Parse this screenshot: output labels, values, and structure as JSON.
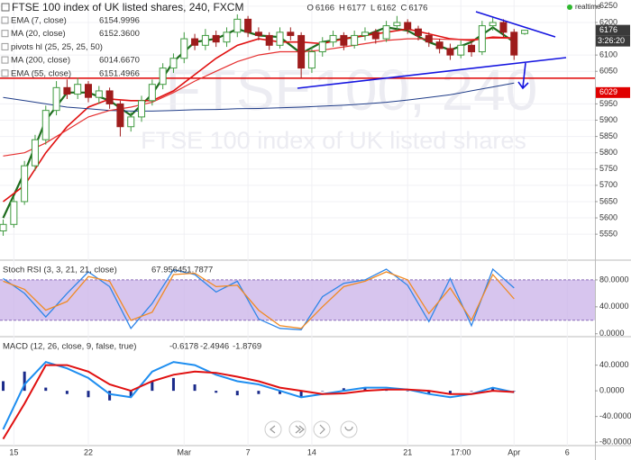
{
  "header": {
    "realtime": "realtime"
  },
  "chart_data": [
    {
      "type": "candlestick",
      "title": "FTSE 100 index of UK listed shares, 240, FXCM",
      "ohlc_labels": [
        {
          "label": "O",
          "value": 6166
        },
        {
          "label": "H",
          "value": 6177
        },
        {
          "label": "L",
          "value": 6162
        },
        {
          "label": "C",
          "value": 6176
        }
      ],
      "watermark": [
        "FTSE100, 240",
        "FTSE 100 index of UK listed shares"
      ],
      "up_color": "#3f9a3f",
      "down_color": "#9e1c1c",
      "open": [
        5560,
        5580,
        5650,
        5760,
        5840,
        5930,
        6000,
        5980,
        6010,
        5970,
        5990,
        5950,
        5880,
        5910,
        5960,
        6010,
        6060,
        6090,
        6150,
        6130,
        6160,
        6140,
        6170,
        6210,
        6170,
        6160,
        6130,
        6170,
        6160,
        6060,
        6110,
        6140,
        6160,
        6130,
        6160,
        6170,
        6150,
        6190,
        6200,
        6180,
        6160,
        6140,
        6120,
        6100,
        6130,
        6110,
        6190,
        6200,
        6170,
        6166
      ],
      "high": [
        5595,
        5665,
        5775,
        5855,
        5945,
        6020,
        6025,
        6030,
        6020,
        6005,
        6000,
        5960,
        5925,
        5975,
        6025,
        6075,
        6105,
        6170,
        6165,
        6180,
        6175,
        6185,
        6225,
        6220,
        6185,
        6170,
        6185,
        6185,
        6170,
        6125,
        6155,
        6175,
        6170,
        6175,
        6185,
        6180,
        6205,
        6220,
        6210,
        6190,
        6170,
        6150,
        6135,
        6145,
        6140,
        6205,
        6215,
        6210,
        6180,
        6177
      ],
      "low": [
        5545,
        5570,
        5640,
        5745,
        5825,
        5915,
        5965,
        5965,
        5955,
        5950,
        5935,
        5850,
        5865,
        5895,
        5945,
        5995,
        6045,
        6075,
        6115,
        6115,
        6125,
        6125,
        6155,
        6155,
        6145,
        6115,
        6120,
        6145,
        6030,
        6045,
        6095,
        6125,
        6115,
        6120,
        6145,
        6135,
        6140,
        6175,
        6165,
        6145,
        6125,
        6105,
        6085,
        6090,
        6095,
        6100,
        6175,
        6155,
        6085,
        6162
      ],
      "close": [
        5580,
        5650,
        5760,
        5840,
        5930,
        6000,
        5980,
        6010,
        5970,
        5990,
        5950,
        5880,
        5910,
        5960,
        6010,
        6060,
        6090,
        6150,
        6130,
        6160,
        6140,
        6170,
        6210,
        6170,
        6160,
        6130,
        6170,
        6160,
        6060,
        6110,
        6140,
        6160,
        6130,
        6160,
        6170,
        6150,
        6190,
        6200,
        6180,
        6160,
        6140,
        6120,
        6100,
        6130,
        6110,
        6190,
        6200,
        6170,
        6100,
        6176
      ],
      "indicator_x": [
        0,
        2,
        4,
        6,
        8,
        10,
        12,
        14,
        16,
        18,
        20,
        22,
        24,
        26,
        28,
        30,
        32,
        34,
        36,
        38,
        40,
        42,
        44,
        46,
        48
      ],
      "series": [
        {
          "name": "EMA (7, close)",
          "label": "6154.9996",
          "color": "#1e6b1e",
          "width": 2.2,
          "values": [
            5600,
            5740,
            5900,
            5985,
            5985,
            5960,
            5915,
            5980,
            6080,
            6140,
            6150,
            6180,
            6160,
            6155,
            6105,
            6140,
            6150,
            6160,
            6185,
            6175,
            6140,
            6115,
            6140,
            6185,
            6140
          ]
        },
        {
          "name": "MA (20, close)",
          "label": "6152.3600",
          "color": "#e01010",
          "width": 1.6,
          "values": [
            5650,
            5700,
            5800,
            5880,
            5940,
            5965,
            5960,
            5960,
            5990,
            6040,
            6090,
            6130,
            6150,
            6140,
            6140,
            6135,
            6150,
            6160,
            6170,
            6180,
            6165,
            6150,
            6145,
            6155,
            6152
          ]
        },
        {
          "name": "pivots hl (25, 25, 25, 50)",
          "color": "#c8c8c8"
        },
        {
          "name": "MA (200, close)",
          "label": "6014.6670",
          "color": "#1f3c88",
          "width": 1,
          "values": [
            5970,
            5960,
            5950,
            5940,
            5935,
            5930,
            5928,
            5928,
            5930,
            5932,
            5933,
            5935,
            5936,
            5938,
            5940,
            5943,
            5946,
            5950,
            5955,
            5962,
            5970,
            5978,
            5990,
            6002,
            6014
          ]
        },
        {
          "name": "EMA (55, close)",
          "label": "6151.4966",
          "color": "#e53030",
          "width": 1.2,
          "values": [
            5790,
            5800,
            5830,
            5870,
            5910,
            5930,
            5940,
            5955,
            5985,
            6020,
            6050,
            6080,
            6100,
            6110,
            6110,
            6115,
            6125,
            6135,
            6145,
            6150,
            6150,
            6148,
            6148,
            6152,
            6151
          ]
        }
      ],
      "hline": {
        "value": 6029,
        "color": "#e00000"
      },
      "countdown": "3:26:20",
      "xlim": [
        -0.3,
        55.6
      ],
      "ylim": [
        5473,
        6269
      ],
      "yticks": [
        6250,
        6200,
        6100,
        6050,
        5950,
        5900,
        5850,
        5800,
        5750,
        5700,
        5650,
        5600,
        5550
      ],
      "xticks": [
        {
          "value": 1,
          "label": "15"
        },
        {
          "value": 8,
          "label": "22"
        },
        {
          "value": 17,
          "label": "Mar"
        },
        {
          "value": 23,
          "label": "7"
        },
        {
          "value": 29,
          "label": "14"
        },
        {
          "value": 38,
          "label": "21"
        },
        {
          "value": 43,
          "label": "17:00"
        },
        {
          "value": 48,
          "label": "Apr"
        },
        {
          "value": 53,
          "label": "6"
        }
      ],
      "grid": true
    },
    {
      "type": "line",
      "title": "Stoch RSI (3, 3, 21, 21, close)",
      "band": [
        20,
        80
      ],
      "band_color": "#cdb6ea",
      "series": [
        {
          "label": "67.9564",
          "color": "#2f86e8",
          "values": [
            82,
            60,
            25,
            60,
            92,
            70,
            8,
            45,
            95,
            88,
            62,
            78,
            22,
            8,
            6,
            55,
            75,
            80,
            96,
            72,
            18,
            82,
            12,
            96,
            67.9564
          ]
        },
        {
          "label": "51.7877",
          "color": "#f08a24",
          "values": [
            78,
            66,
            35,
            48,
            85,
            78,
            20,
            32,
            88,
            90,
            70,
            72,
            35,
            12,
            8,
            40,
            70,
            78,
            92,
            80,
            30,
            68,
            20,
            88,
            51.7877
          ]
        }
      ],
      "ylim": [
        -3,
        108
      ],
      "yticks": [
        {
          "value": 80,
          "label": "80.0000"
        },
        {
          "value": 40,
          "label": "40.0000"
        },
        {
          "value": 0,
          "label": "0.0000"
        }
      ]
    },
    {
      "type": "macd",
      "title": "MACD (12, 26, close, 9, false, true)",
      "histogram": {
        "label": "-0.6178",
        "color": "#1a2a8a",
        "values": [
          15,
          30,
          5,
          -5,
          -10,
          -15,
          -10,
          15,
          20,
          10,
          -3,
          -7,
          -5,
          -5,
          -10,
          0,
          4,
          5,
          3,
          0,
          -5,
          -5,
          0,
          5,
          -0.6178
        ]
      },
      "series": [
        {
          "label": "-2.4946",
          "color": "#1e8ef0",
          "values": [
            -60,
            10,
            45,
            35,
            20,
            -5,
            -10,
            30,
            45,
            40,
            25,
            15,
            10,
            0,
            -10,
            -5,
            0,
            5,
            5,
            2,
            -5,
            -10,
            -5,
            5,
            -2.4946
          ]
        },
        {
          "label": "-1.8769",
          "color": "#e01010",
          "values": [
            -75,
            -20,
            40,
            40,
            30,
            10,
            0,
            15,
            25,
            30,
            28,
            22,
            15,
            5,
            0,
            -5,
            -4,
            0,
            2,
            2,
            0,
            -5,
            -5,
            0,
            -1.8769
          ]
        }
      ],
      "ylim": [
        -84,
        83
      ],
      "yticks": [
        {
          "value": 40,
          "label": "40.0000"
        },
        {
          "value": 0,
          "label": "0.0000"
        },
        {
          "value": -40,
          "label": "-40.0000"
        },
        {
          "value": -80,
          "label": "-80.0000"
        }
      ]
    }
  ]
}
